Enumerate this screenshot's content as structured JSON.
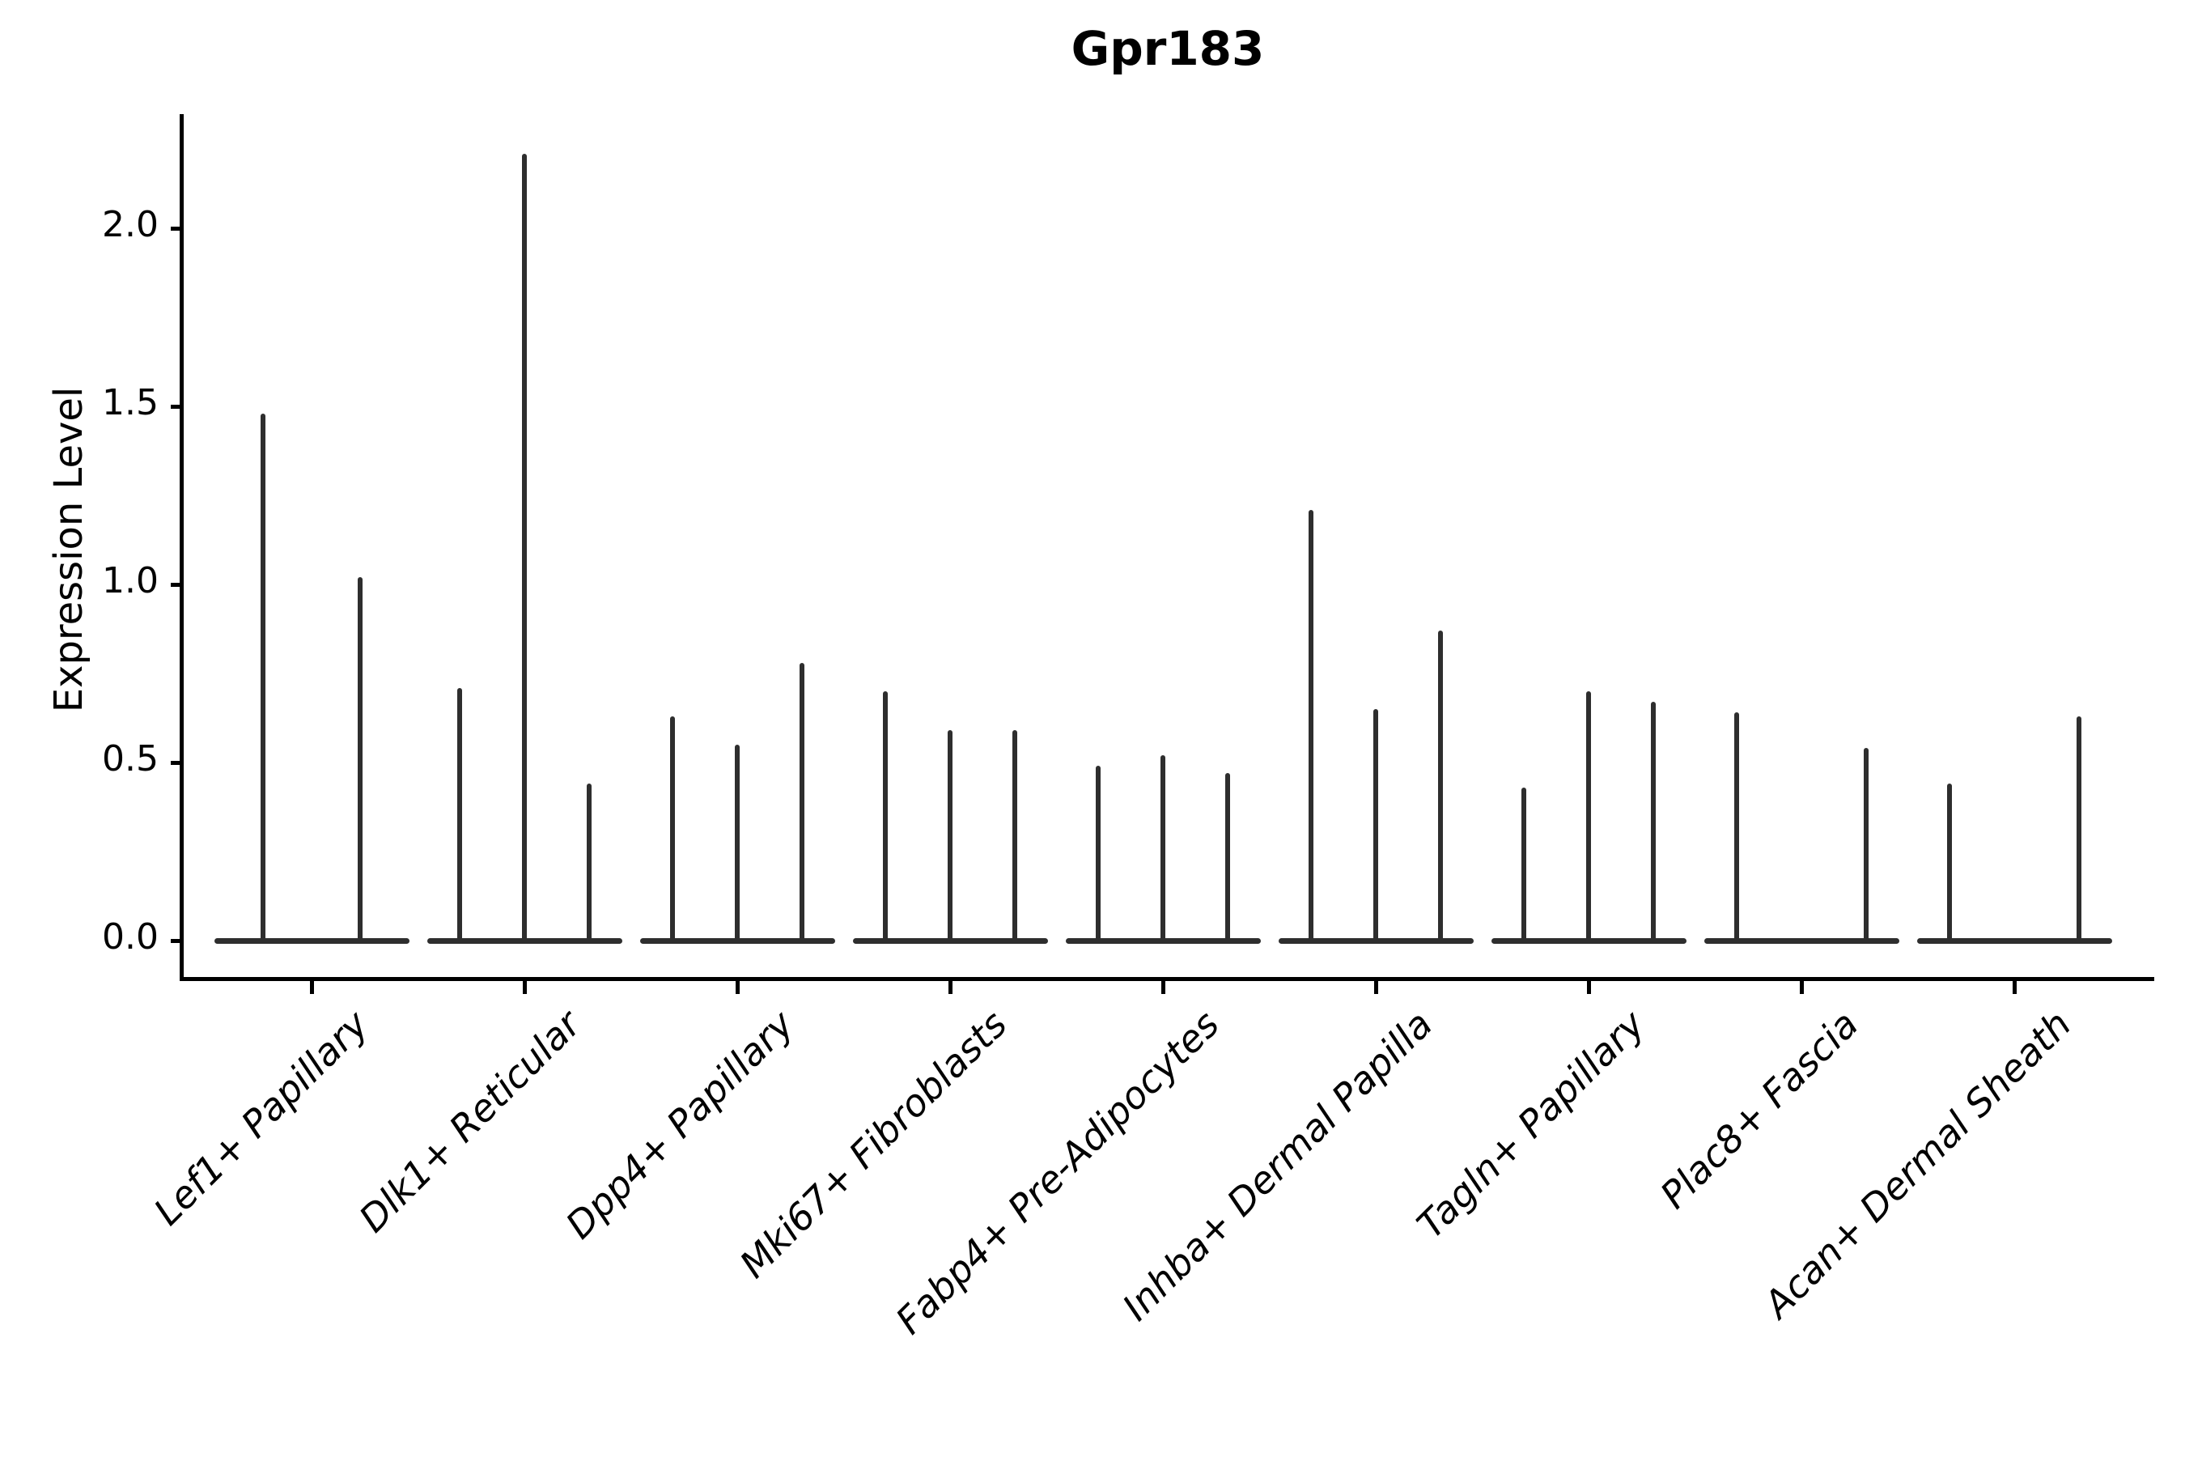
{
  "title": "Gpr183",
  "ylabel": "Expression Level",
  "chart_data": {
    "type": "violin",
    "title": "Gpr183",
    "xlabel": "",
    "ylabel": "Expression Level",
    "ylim": [
      -0.11,
      2.32
    ],
    "yticks": [
      0.0,
      0.5,
      1.0,
      1.5,
      2.0
    ],
    "ytick_labels": [
      "0.0",
      "0.5",
      "1.0",
      "1.5",
      "2.0"
    ],
    "grid": "off",
    "legend": "none",
    "ink_color": "#2e2e2e",
    "axis_color": "#000000",
    "background_color": "#ffffff",
    "description": "Needle-thin violins (near-zero-width KDE spikes) sitting on flat zero-expression bases; one base segment per cluster, 2-3 violins per cluster.",
    "categories": [
      "Lef1+ Papillary",
      "Dlk1+ Reticular",
      "Dpp4+ Papillary",
      "Mki67+ Fibroblasts",
      "Fabp4+ Pre-Adipocytes",
      "Inhba+ Dermal Papilla",
      "Tagln+ Papillary",
      "Plac8+ Fascia",
      "Acan+ Dermal Sheath"
    ],
    "groups": [
      {
        "label": "Lef1+ Papillary",
        "slots": [
          0.25,
          0.75
        ],
        "peaks": [
          1.48,
          1.02
        ]
      },
      {
        "label": "Dlk1+ Reticular",
        "slots": [
          0.1667,
          0.5,
          0.8333
        ],
        "peaks": [
          0.71,
          2.21,
          0.44
        ]
      },
      {
        "label": "Dpp4+ Papillary",
        "slots": [
          0.1667,
          0.5,
          0.8333
        ],
        "peaks": [
          0.63,
          0.55,
          0.78
        ]
      },
      {
        "label": "Mki67+ Fibroblasts",
        "slots": [
          0.1667,
          0.5,
          0.8333
        ],
        "peaks": [
          0.7,
          0.59,
          0.59
        ]
      },
      {
        "label": "Fabp4+ Pre-Adipocytes",
        "slots": [
          0.1667,
          0.5,
          0.8333
        ],
        "peaks": [
          0.49,
          0.52,
          0.47
        ]
      },
      {
        "label": "Inhba+ Dermal Papilla",
        "slots": [
          0.1667,
          0.5,
          0.8333
        ],
        "peaks": [
          1.21,
          0.65,
          0.87
        ]
      },
      {
        "label": "Tagln+ Papillary",
        "slots": [
          0.1667,
          0.5,
          0.8333
        ],
        "peaks": [
          0.43,
          0.7,
          0.67
        ]
      },
      {
        "label": "Plac8+ Fascia",
        "slots": [
          0.1667,
          0.8333
        ],
        "peaks": [
          0.64,
          0.54
        ]
      },
      {
        "label": "Acan+ Dermal Sheath",
        "slots": [
          0.1667,
          0.8333
        ],
        "peaks": [
          0.44,
          0.63
        ]
      }
    ]
  }
}
